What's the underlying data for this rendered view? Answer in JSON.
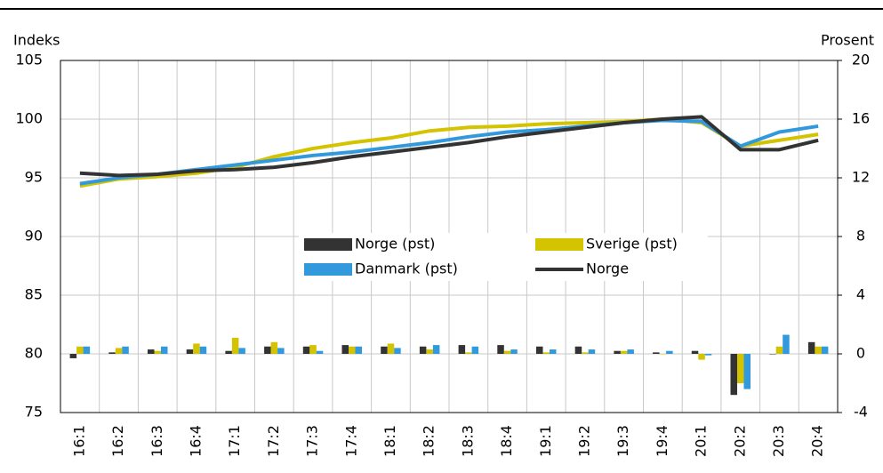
{
  "chart_data": {
    "type": "bar_line",
    "ylabel": "Indeks",
    "y2label": "Prosent",
    "categories": [
      "16:1",
      "16:2",
      "16:3",
      "16:4",
      "17:1",
      "17:2",
      "17:3",
      "17:4",
      "18:1",
      "18:2",
      "18:3",
      "18:4",
      "19:1",
      "19:2",
      "19:3",
      "19:4",
      "20:1",
      "20:2",
      "20:3",
      "20:4"
    ],
    "ylim": [
      75,
      105
    ],
    "yticks": [
      75,
      80,
      85,
      90,
      95,
      100,
      105
    ],
    "y2lim": [
      -4,
      20
    ],
    "y2ticks": [
      -4,
      0,
      4,
      8,
      12,
      16,
      20
    ],
    "grid": true,
    "series": [
      {
        "name": "Norge (pst)",
        "color": "#333333",
        "axis": "y2",
        "values": [
          -0.3,
          0.1,
          0.3,
          0.3,
          0.2,
          0.5,
          0.5,
          0.6,
          0.5,
          0.5,
          0.6,
          0.6,
          0.5,
          0.5,
          0.2,
          0.1,
          0.2,
          -2.8,
          0.0,
          0.8
        ]
      },
      {
        "name": "Sverige (pst)",
        "color": "#d4c300",
        "axis": "y2",
        "values": [
          0.5,
          0.4,
          0.2,
          0.7,
          1.1,
          0.8,
          0.6,
          0.5,
          0.7,
          0.3,
          0.1,
          0.2,
          0.1,
          0.1,
          0.2,
          0.0,
          -0.4,
          -2.0,
          0.5,
          0.5
        ]
      },
      {
        "name": "Danmark (pst)",
        "color": "#3399dd",
        "axis": "y2",
        "values": [
          0.5,
          0.5,
          0.5,
          0.5,
          0.4,
          0.4,
          0.2,
          0.5,
          0.4,
          0.6,
          0.5,
          0.3,
          0.3,
          0.3,
          0.3,
          0.2,
          -0.1,
          -2.4,
          1.3,
          0.5
        ]
      }
    ],
    "lines": [
      {
        "color": "#d4c300",
        "values": [
          94.3,
          94.9,
          95.1,
          95.4,
          95.9,
          96.8,
          97.5,
          98.0,
          98.4,
          99.0,
          99.3,
          99.4,
          99.6,
          99.7,
          99.8,
          100.0,
          99.7,
          97.7,
          98.2,
          98.7
        ]
      },
      {
        "color": "#3399dd",
        "values": [
          94.5,
          95.0,
          95.3,
          95.7,
          96.1,
          96.5,
          96.9,
          97.2,
          97.6,
          98.0,
          98.5,
          98.9,
          99.1,
          99.4,
          99.7,
          99.9,
          99.8,
          97.7,
          98.9,
          99.4
        ]
      },
      {
        "name": "Norge",
        "color": "#333333",
        "values": [
          95.4,
          95.2,
          95.3,
          95.6,
          95.7,
          95.9,
          96.3,
          96.8,
          97.2,
          97.6,
          98.0,
          98.5,
          98.9,
          99.3,
          99.7,
          100.0,
          100.2,
          97.4,
          97.4,
          98.2
        ]
      }
    ]
  }
}
